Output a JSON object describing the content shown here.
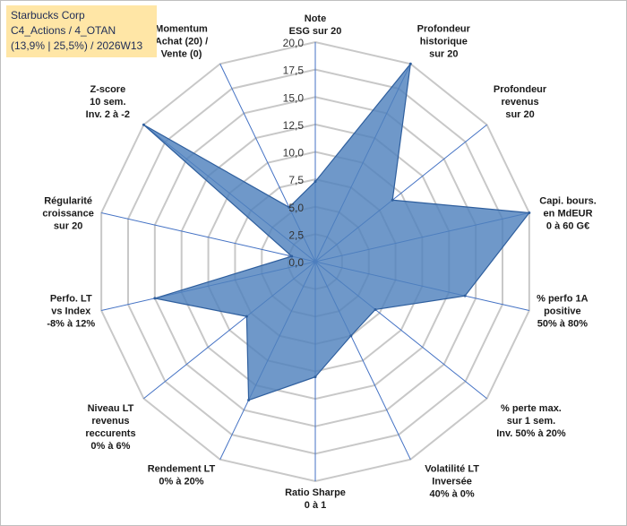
{
  "title_box": {
    "line1": "Starbucks Corp",
    "line2": "C4_Actions / 4_OTAN",
    "line3": "(13,9% | 25,5%) / 2026W13"
  },
  "chart_data": {
    "type": "radar",
    "r_min": 0,
    "r_max": 20,
    "tick_step": 2.5,
    "tick_labels": [
      "0,0",
      "2,5",
      "5,0",
      "7,5",
      "10,0",
      "12,5",
      "15,0",
      "17,5",
      "20,0"
    ],
    "axes": [
      {
        "label": [
          "Note",
          "ESG sur 20"
        ],
        "value": 7.3
      },
      {
        "label": [
          "Profondeur",
          "historique",
          "sur 20"
        ],
        "value": 20
      },
      {
        "label": [
          "Profondeur",
          "revenus",
          "sur 20"
        ],
        "value": 9
      },
      {
        "label": [
          "Capi. bours.",
          "en MdEUR",
          "0 à 60 G€"
        ],
        "value": 20
      },
      {
        "label": [
          "% perfo 1A",
          "positive",
          "50% à 80%"
        ],
        "value": 14
      },
      {
        "label": [
          "% perte max.",
          "sur 1 sem.",
          "Inv. 50% à 20%"
        ],
        "value": 7
      },
      {
        "label": [
          "Volatilité LT",
          "Inversée",
          "40% à 0%"
        ],
        "value": 7.5
      },
      {
        "label": [
          "Ratio Sharpe",
          "0 à 1"
        ],
        "value": 10.5
      },
      {
        "label": [
          "Rendement LT",
          "0% à 20%"
        ],
        "value": 14
      },
      {
        "label": [
          "Niveau LT",
          "revenus",
          "reccurents",
          "0% à 6%"
        ],
        "value": 8
      },
      {
        "label": [
          "Perfo. LT",
          "vs Index",
          "-8% à 12%"
        ],
        "value": 15
      },
      {
        "label": [
          "Régularité",
          "croissance",
          "sur 20"
        ],
        "value": 2.2
      },
      {
        "label": [
          "Z-score",
          "10 sem.",
          "Inv. 2 à -2"
        ],
        "value": 20
      },
      {
        "label": [
          "Momentum",
          "Achat (20) /",
          "Vente (0)"
        ],
        "value": 5.5
      }
    ],
    "colors": {
      "fill": "#4f81bd",
      "stroke": "#2f5f9e",
      "spoke": "#4472c4",
      "grid": "#c8c8c8"
    }
  }
}
